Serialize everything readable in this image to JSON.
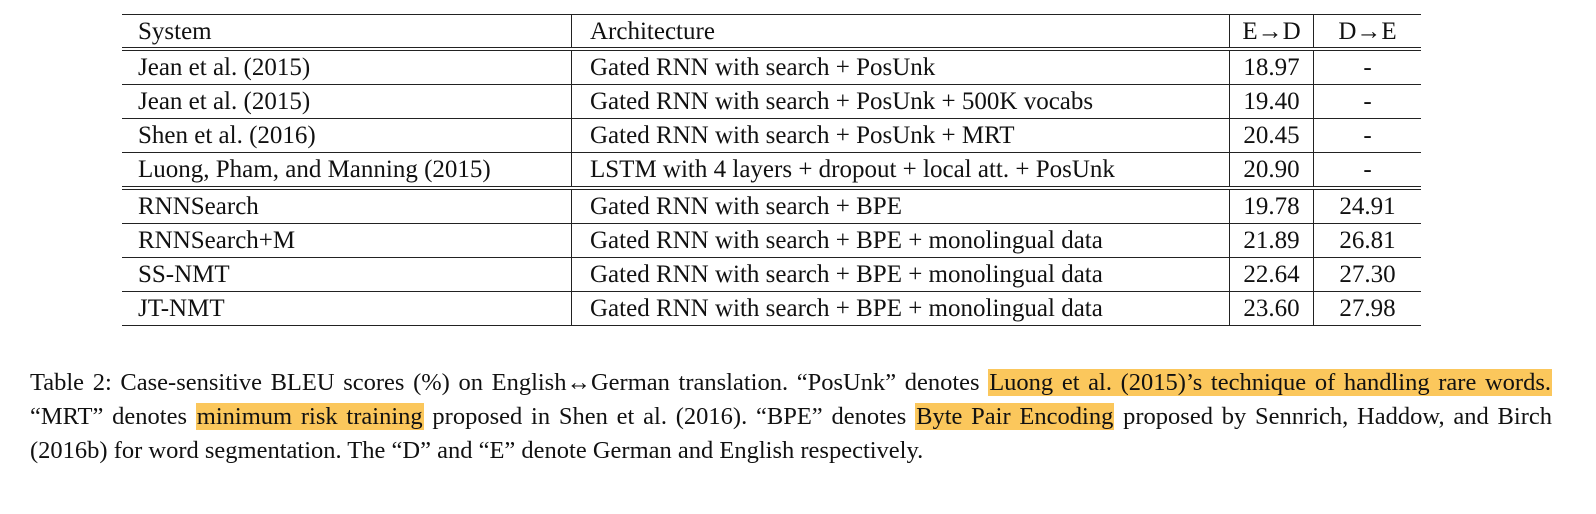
{
  "table": {
    "headers": [
      "System",
      "Architecture",
      "E→D",
      "D→E"
    ],
    "group1": [
      {
        "system": "Jean et al. (2015)",
        "arch": "Gated RNN with search + PosUnk",
        "ed": "18.97",
        "de": "-"
      },
      {
        "system": "Jean et al. (2015)",
        "arch": "Gated RNN with search + PosUnk + 500K vocabs",
        "ed": "19.40",
        "de": "-"
      },
      {
        "system": "Shen et al. (2016)",
        "arch": "Gated RNN with search + PosUnk + MRT",
        "ed": "20.45",
        "de": "-"
      },
      {
        "system": "Luong, Pham, and Manning (2015)",
        "arch": "LSTM with 4 layers + dropout + local att. + PosUnk",
        "ed": "20.90",
        "de": "-"
      }
    ],
    "group2": [
      {
        "system": "RNNSearch",
        "arch": "Gated RNN with search + BPE",
        "ed": "19.78",
        "de": "24.91"
      },
      {
        "system": "RNNSearch+M",
        "arch": "Gated RNN with search + BPE + monolingual data",
        "ed": "21.89",
        "de": "26.81"
      },
      {
        "system": "SS-NMT",
        "arch": "Gated RNN with search + BPE + monolingual data",
        "ed": "22.64",
        "de": "27.30"
      },
      {
        "system": "JT-NMT",
        "arch": "Gated RNN with search + BPE + monolingual data",
        "ed": "23.60",
        "de": "27.98"
      }
    ]
  },
  "caption": {
    "p1": "Table 2: Case-sensitive BLEU scores (%) on English↔German translation. “PosUnk” denotes ",
    "h1": "Luong et al. (2015)’s technique of handling rare words.",
    "p2": " “MRT” denotes ",
    "h2": "minimum risk training",
    "p3": " proposed in Shen et al. (2016). “BPE” denotes ",
    "h3": "Byte Pair Encoding",
    "p4": " proposed by Sennrich, Haddow, and Birch (2016b) for word segmentation. The “D” and “E” denote German and English respectively."
  },
  "colors": {
    "highlight": "#fbc75c"
  }
}
